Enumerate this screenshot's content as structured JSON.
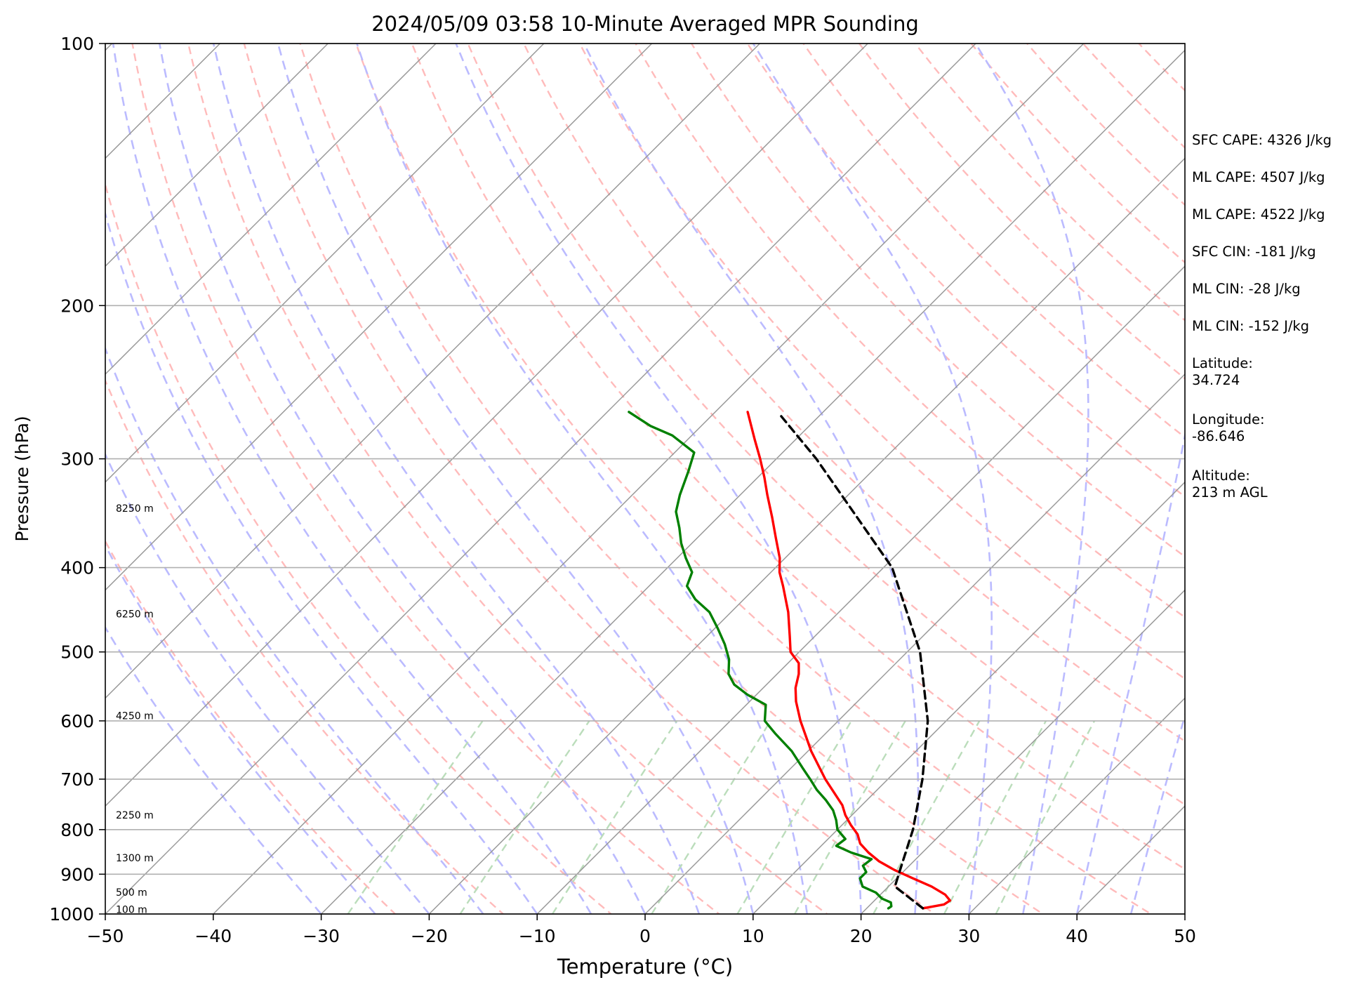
{
  "chart_data": {
    "type": "skew-t",
    "title": "2024/05/09 03:58 10-Minute Averaged MPR Sounding",
    "xlabel": "Temperature (°C)",
    "ylabel": "Pressure (hPa)",
    "xlim": [
      -50,
      50
    ],
    "ylim_hPa": [
      1000,
      100
    ],
    "y_scale": "log",
    "x_ticks": [
      -50,
      -40,
      -30,
      -20,
      -10,
      0,
      10,
      20,
      30,
      40,
      50
    ],
    "x_tick_labels": [
      "−50",
      "−40",
      "−30",
      "−20",
      "−10",
      "0",
      "10",
      "20",
      "30",
      "40",
      "50"
    ],
    "y_ticks": [
      1000,
      900,
      800,
      700,
      600,
      500,
      400,
      300,
      200,
      100
    ],
    "y_tick_labels": [
      "1000",
      "900",
      "800",
      "700",
      "600",
      "500",
      "400",
      "300",
      "200",
      "100"
    ],
    "height_labels": [
      {
        "pressure": 988,
        "text": "100 m"
      },
      {
        "pressure": 944,
        "text": "500 m"
      },
      {
        "pressure": 862,
        "text": "1300 m"
      },
      {
        "pressure": 770,
        "text": "2250 m"
      },
      {
        "pressure": 592,
        "text": "4250 m"
      },
      {
        "pressure": 452,
        "text": "6250 m"
      },
      {
        "pressure": 342,
        "text": "8250 m"
      }
    ],
    "series": [
      {
        "kind": "temperature",
        "color": "#ff0000",
        "points": [
          {
            "p": 985,
            "t": 25.2
          },
          {
            "p": 975,
            "t": 26.8
          },
          {
            "p": 965,
            "t": 27.0
          },
          {
            "p": 950,
            "t": 26.0
          },
          {
            "p": 930,
            "t": 24.0
          },
          {
            "p": 910,
            "t": 21.5
          },
          {
            "p": 890,
            "t": 19.0
          },
          {
            "p": 870,
            "t": 16.8
          },
          {
            "p": 850,
            "t": 15.0
          },
          {
            "p": 830,
            "t": 13.4
          },
          {
            "p": 810,
            "t": 12.3
          },
          {
            "p": 790,
            "t": 10.8
          },
          {
            "p": 770,
            "t": 9.4
          },
          {
            "p": 750,
            "t": 8.2
          },
          {
            "p": 700,
            "t": 4.2
          },
          {
            "p": 650,
            "t": 0.3
          },
          {
            "p": 600,
            "t": -3.5
          },
          {
            "p": 570,
            "t": -5.7
          },
          {
            "p": 550,
            "t": -7.0
          },
          {
            "p": 530,
            "t": -8.0
          },
          {
            "p": 515,
            "t": -9.0
          },
          {
            "p": 500,
            "t": -10.8
          },
          {
            "p": 480,
            "t": -12.3
          },
          {
            "p": 450,
            "t": -14.7
          },
          {
            "p": 420,
            "t": -17.6
          },
          {
            "p": 405,
            "t": -19.2
          },
          {
            "p": 390,
            "t": -20.5
          },
          {
            "p": 370,
            "t": -22.7
          },
          {
            "p": 350,
            "t": -25.0
          },
          {
            "p": 330,
            "t": -27.5
          },
          {
            "p": 315,
            "t": -29.4
          },
          {
            "p": 300,
            "t": -31.5
          },
          {
            "p": 285,
            "t": -33.8
          },
          {
            "p": 265,
            "t": -37.0
          }
        ]
      },
      {
        "kind": "dewpoint",
        "color": "#008000",
        "points": [
          {
            "p": 985,
            "t": 22.0
          },
          {
            "p": 980,
            "t": 22.1
          },
          {
            "p": 970,
            "t": 21.7
          },
          {
            "p": 960,
            "t": 20.5
          },
          {
            "p": 945,
            "t": 19.4
          },
          {
            "p": 930,
            "t": 17.6
          },
          {
            "p": 910,
            "t": 16.6
          },
          {
            "p": 895,
            "t": 16.6
          },
          {
            "p": 880,
            "t": 15.7
          },
          {
            "p": 865,
            "t": 15.9
          },
          {
            "p": 850,
            "t": 13.4
          },
          {
            "p": 835,
            "t": 11.4
          },
          {
            "p": 820,
            "t": 11.6
          },
          {
            "p": 800,
            "t": 10.0
          },
          {
            "p": 780,
            "t": 9.0
          },
          {
            "p": 760,
            "t": 7.8
          },
          {
            "p": 740,
            "t": 6.2
          },
          {
            "p": 720,
            "t": 4.4
          },
          {
            "p": 700,
            "t": 2.8
          },
          {
            "p": 680,
            "t": 1.1
          },
          {
            "p": 650,
            "t": -1.5
          },
          {
            "p": 620,
            "t": -4.7
          },
          {
            "p": 600,
            "t": -6.8
          },
          {
            "p": 575,
            "t": -8.2
          },
          {
            "p": 560,
            "t": -10.8
          },
          {
            "p": 545,
            "t": -13.0
          },
          {
            "p": 530,
            "t": -14.5
          },
          {
            "p": 510,
            "t": -15.8
          },
          {
            "p": 490,
            "t": -17.6
          },
          {
            "p": 470,
            "t": -19.7
          },
          {
            "p": 450,
            "t": -22.0
          },
          {
            "p": 435,
            "t": -24.5
          },
          {
            "p": 420,
            "t": -26.5
          },
          {
            "p": 405,
            "t": -27.3
          },
          {
            "p": 390,
            "t": -29.2
          },
          {
            "p": 375,
            "t": -31.0
          },
          {
            "p": 360,
            "t": -32.6
          },
          {
            "p": 345,
            "t": -34.4
          },
          {
            "p": 330,
            "t": -35.6
          },
          {
            "p": 310,
            "t": -37.0
          },
          {
            "p": 295,
            "t": -38.2
          },
          {
            "p": 282,
            "t": -41.8
          },
          {
            "p": 275,
            "t": -44.7
          },
          {
            "p": 265,
            "t": -48.0
          }
        ]
      },
      {
        "kind": "parcel",
        "color": "#000000",
        "points": [
          {
            "p": 985,
            "t": 25.2
          },
          {
            "p": 930,
            "t": 20.6
          },
          {
            "p": 900,
            "t": 19.8
          },
          {
            "p": 800,
            "t": 17.0
          },
          {
            "p": 700,
            "t": 13.2
          },
          {
            "p": 600,
            "t": 8.3
          },
          {
            "p": 500,
            "t": 1.2
          },
          {
            "p": 400,
            "t": -9.2
          },
          {
            "p": 300,
            "t": -26.3
          },
          {
            "p": 268,
            "t": -33.5
          }
        ]
      }
    ],
    "stats": [
      {
        "label": "SFC CAPE: 4326 J/kg"
      },
      {
        "label": "ML CAPE: 4507 J/kg"
      },
      {
        "label": "ML CAPE: 4522 J/kg"
      },
      {
        "label": "SFC CIN: -181 J/kg"
      },
      {
        "label": "ML CIN: -28 J/kg"
      },
      {
        "label": "ML CIN: -152 J/kg"
      },
      {
        "label": "Latitude:",
        "value": "34.724"
      },
      {
        "label": "Longitude:",
        "value": "-86.646"
      },
      {
        "label": "Altitude:",
        "value": "213 m AGL"
      }
    ],
    "grid": true,
    "reference_lines": {
      "isotherm_color": "#999999",
      "dry_adiabat_color": "#ffbbbb",
      "moist_adiabat_color": "#bbbbff",
      "mixing_ratio_color": "#bbddbb"
    }
  }
}
